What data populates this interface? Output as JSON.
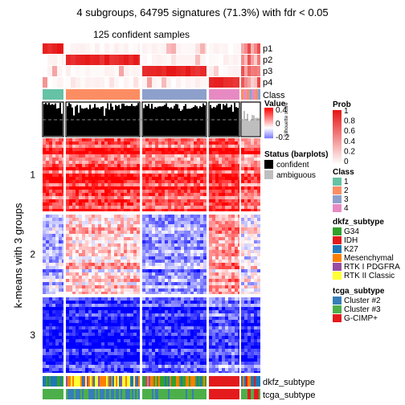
{
  "chart_data": {
    "type": "heatmap",
    "title": "4 subgroups, 64795 signatures (71.3%) with fdr < 0.05",
    "subtitle": "125 confident samples",
    "row_title": "k-means with 3 groups",
    "row_groups": [
      "1",
      "2",
      "3"
    ],
    "row_group_fractions": [
      0.32,
      0.35,
      0.33
    ],
    "column_groups": [
      {
        "class": "1",
        "n_fraction": 0.11
      },
      {
        "class": "2",
        "n_fraction": 0.39
      },
      {
        "class": "3",
        "n_fraction": 0.34
      },
      {
        "class": "4",
        "n_fraction": 0.16
      }
    ],
    "ambiguous_fraction": 0.09,
    "top_annotations": [
      "p1",
      "p2",
      "p3",
      "p4",
      "Class"
    ],
    "bottom_annotations": [
      "dkfz_subtype",
      "tcga_subtype"
    ],
    "silhouette_label": "Silhouette score",
    "value_legend": {
      "title": "Value",
      "ticks": [
        "0.4",
        "0",
        "-0.2"
      ]
    },
    "status_legend": {
      "title": "Status (barplots)",
      "items": [
        "confident",
        "ambiguous"
      ],
      "colors": [
        "#000000",
        "#bebebe"
      ]
    },
    "prob_legend": {
      "title": "Prob",
      "ticks": [
        "1",
        "0.8",
        "0.6",
        "0.4",
        "0.2",
        "0"
      ]
    },
    "class_legend": {
      "title": "Class",
      "items": [
        "1",
        "2",
        "3",
        "4"
      ],
      "colors": [
        "#66c2a5",
        "#fc8d62",
        "#8da0cb",
        "#e78ac3"
      ]
    },
    "dkfz_legend": {
      "title": "dkfz_subtype",
      "items": [
        "G34",
        "IDH",
        "K27",
        "Mesenchymal",
        "RTK I PDGFRA",
        "RTK II Classic"
      ],
      "colors": [
        "#33a02c",
        "#e31a1c",
        "#1f78b4",
        "#ff7f00",
        "#984ea3",
        "#ffff33"
      ]
    },
    "tcga_legend": {
      "title": "tcga_subtype",
      "items": [
        "Cluster #2",
        "Cluster #3",
        "G-CIMP+"
      ],
      "colors": [
        "#377eb8",
        "#4daf4a",
        "#e41a1c"
      ]
    }
  }
}
